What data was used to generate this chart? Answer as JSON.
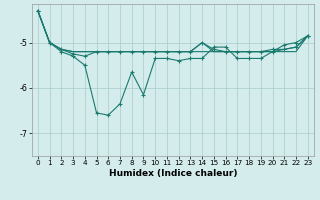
{
  "xlabel": "Humidex (Indice chaleur)",
  "background_color": "#d4ecec",
  "line_color": "#1a7a6e",
  "grid_color": "#a8cccc",
  "x_values": [
    0,
    1,
    2,
    3,
    4,
    5,
    6,
    7,
    8,
    9,
    10,
    11,
    12,
    13,
    14,
    15,
    16,
    17,
    18,
    19,
    20,
    21,
    22,
    23
  ],
  "line1": [
    -4.3,
    -5.0,
    -5.15,
    -5.2,
    -5.2,
    -5.2,
    -5.2,
    -5.2,
    -5.2,
    -5.2,
    -5.2,
    -5.2,
    -5.2,
    -5.2,
    -5.2,
    -5.2,
    -5.2,
    -5.2,
    -5.2,
    -5.2,
    -5.2,
    -5.2,
    -5.2,
    -4.85
  ],
  "line2": [
    -4.3,
    -5.0,
    -5.15,
    -5.2,
    -5.2,
    -5.2,
    -5.2,
    -5.2,
    -5.2,
    -5.2,
    -5.2,
    -5.2,
    -5.2,
    -5.2,
    -5.0,
    -5.2,
    -5.2,
    -5.2,
    -5.2,
    -5.2,
    -5.2,
    -5.15,
    -5.1,
    -4.85
  ],
  "line3_marked": [
    -4.3,
    -5.0,
    -5.2,
    -5.3,
    -5.5,
    -6.55,
    -6.6,
    -6.35,
    -5.65,
    -6.15,
    -5.35,
    -5.35,
    -5.4,
    -5.35,
    -5.35,
    -5.1,
    -5.1,
    -5.35,
    -5.35,
    -5.35,
    -5.2,
    -5.05,
    -5.0,
    -4.85
  ],
  "line4_marked": [
    -4.3,
    -5.0,
    -5.15,
    -5.25,
    -5.3,
    -5.2,
    -5.2,
    -5.2,
    -5.2,
    -5.2,
    -5.2,
    -5.2,
    -5.2,
    -5.2,
    -5.0,
    -5.15,
    -5.2,
    -5.2,
    -5.2,
    -5.2,
    -5.15,
    -5.15,
    -5.1,
    -4.85
  ],
  "xlim": [
    -0.5,
    23.5
  ],
  "ylim": [
    -7.5,
    -4.15
  ],
  "yticks": [
    -7,
    -6,
    -5
  ],
  "xticks": [
    0,
    1,
    2,
    3,
    4,
    5,
    6,
    7,
    8,
    9,
    10,
    11,
    12,
    13,
    14,
    15,
    16,
    17,
    18,
    19,
    20,
    21,
    22,
    23
  ],
  "xlabel_fontsize": 6.5,
  "tick_fontsize": 5.2
}
